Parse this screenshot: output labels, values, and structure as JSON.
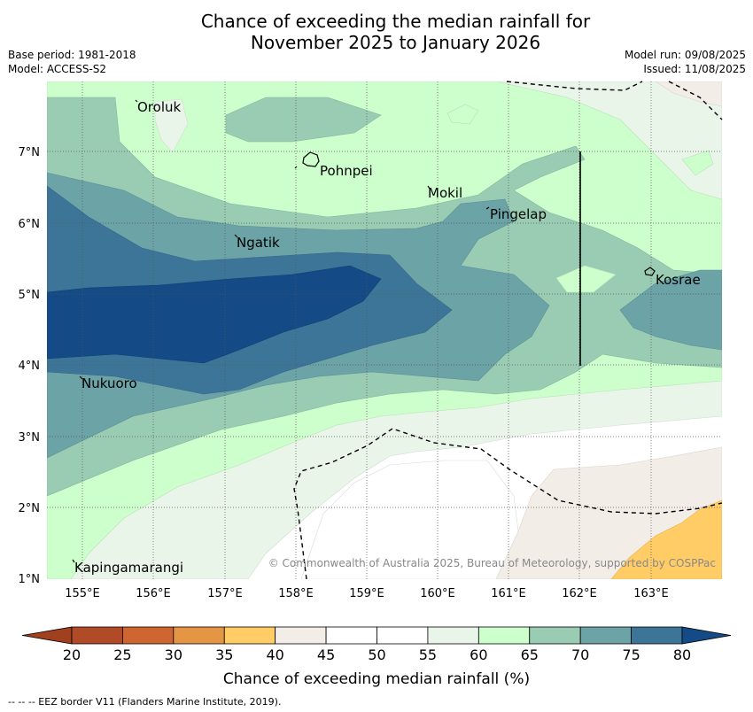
{
  "title_line1": "Chance of exceeding the median rainfall for",
  "title_line2": "November 2025 to January 2026",
  "base_period": "Base period: 1981-2018",
  "model": "Model: ACCESS-S2",
  "model_run": "Model run: 09/08/2025",
  "issued": "Issued: 11/08/2025",
  "copyright": "© Commonwealth of Australia 2025, Bureau of Meteorology, supported by COSPPac",
  "colorbar_label": "Chance of exceeding median rainfall (%)",
  "footer": "-- -- -- EEZ border V11 (Flanders Marine Institute, 2019).",
  "lon_labels": [
    "155°E",
    "156°E",
    "157°E",
    "158°E",
    "159°E",
    "160°E",
    "161°E",
    "162°E",
    "163°E"
  ],
  "lat_labels": [
    "7°N",
    "6°N",
    "5°N",
    "4°N",
    "3°N",
    "2°N",
    "1°N"
  ],
  "colorbar_ticks": [
    "20",
    "25",
    "30",
    "35",
    "40",
    "45",
    "50",
    "55",
    "60",
    "65",
    "70",
    "75",
    "80"
  ],
  "colorbar_colors": [
    "#a0401f",
    "#b14a26",
    "#cf6631",
    "#e59645",
    "#ffcc66",
    "#f3ede7",
    "#ffffff",
    "#ffffff",
    "#eaf5ea",
    "#ccffcc",
    "#99ccb3",
    "#6ba3a6",
    "#3d7599",
    "#144a85"
  ],
  "places": [
    {
      "name": "Oroluk"
    },
    {
      "name": "Pohnpei"
    },
    {
      "name": "Mokil"
    },
    {
      "name": "Pingelap"
    },
    {
      "name": "Ngatik"
    },
    {
      "name": "Kosrae"
    },
    {
      "name": "Nukuoro"
    },
    {
      "name": "Kapingamarangi"
    }
  ]
}
